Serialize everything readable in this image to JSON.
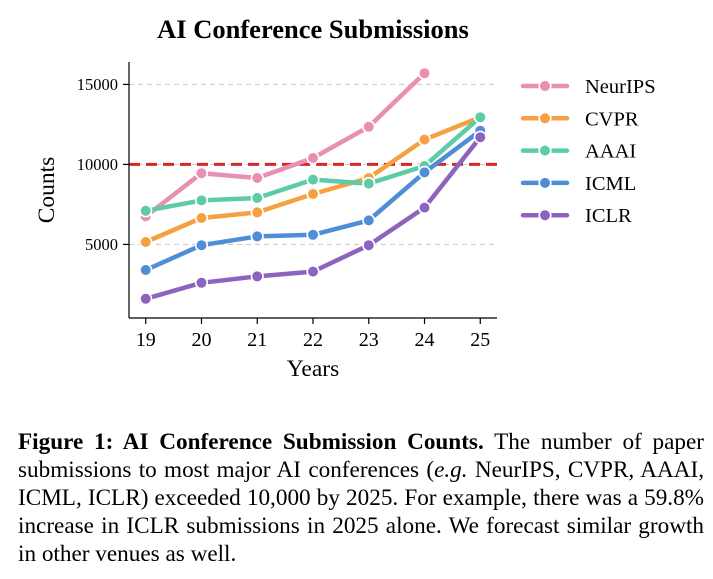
{
  "chart_data": {
    "type": "line",
    "title": "AI Conference Submissions",
    "xlabel": "Years",
    "ylabel": "Counts",
    "x": [
      19,
      20,
      21,
      22,
      23,
      24,
      25
    ],
    "xticks": [
      "19",
      "20",
      "21",
      "22",
      "23",
      "24",
      "25"
    ],
    "yticks": [
      5000,
      10000,
      15000
    ],
    "ytick_labels": [
      "5000",
      "10000",
      "15000"
    ],
    "xlim": [
      18.7,
      25.3
    ],
    "ylim": [
      400,
      16400
    ],
    "grid": "horizontal dashed",
    "reference_line": {
      "y": 10000,
      "color": "#d62728",
      "style": "dashed"
    },
    "legend_position": "right",
    "series": [
      {
        "name": "NeurIPS",
        "color": "#e88fb3",
        "values": [
          6750,
          9450,
          9150,
          10400,
          12350,
          15700,
          null
        ]
      },
      {
        "name": "CVPR",
        "color": "#f5a142",
        "values": [
          5150,
          6650,
          7000,
          8150,
          9150,
          11550,
          12950
        ]
      },
      {
        "name": "AAAI",
        "color": "#5ccba6",
        "values": [
          7100,
          7750,
          7900,
          9050,
          8800,
          9900,
          12950
        ]
      },
      {
        "name": "ICML",
        "color": "#4f8ed6",
        "values": [
          3400,
          4950,
          5500,
          5600,
          6500,
          9500,
          12100
        ]
      },
      {
        "name": "ICLR",
        "color": "#8c63bf",
        "values": [
          1600,
          2600,
          3000,
          3300,
          4950,
          7300,
          11700
        ]
      }
    ]
  },
  "caption": {
    "label": "Figure 1: AI Conference Submission Counts.",
    "text_before_eg": " The number of paper submissions to most major AI conferences (",
    "eg": "e.g.",
    "text_after_eg": " NeurIPS, CVPR, AAAI, ICML, ICLR) exceeded 10,000 by 2025. For example, there was a 59.8% increase in ICLR submissions in 2025 alone. We forecast similar growth in other venues as well."
  }
}
